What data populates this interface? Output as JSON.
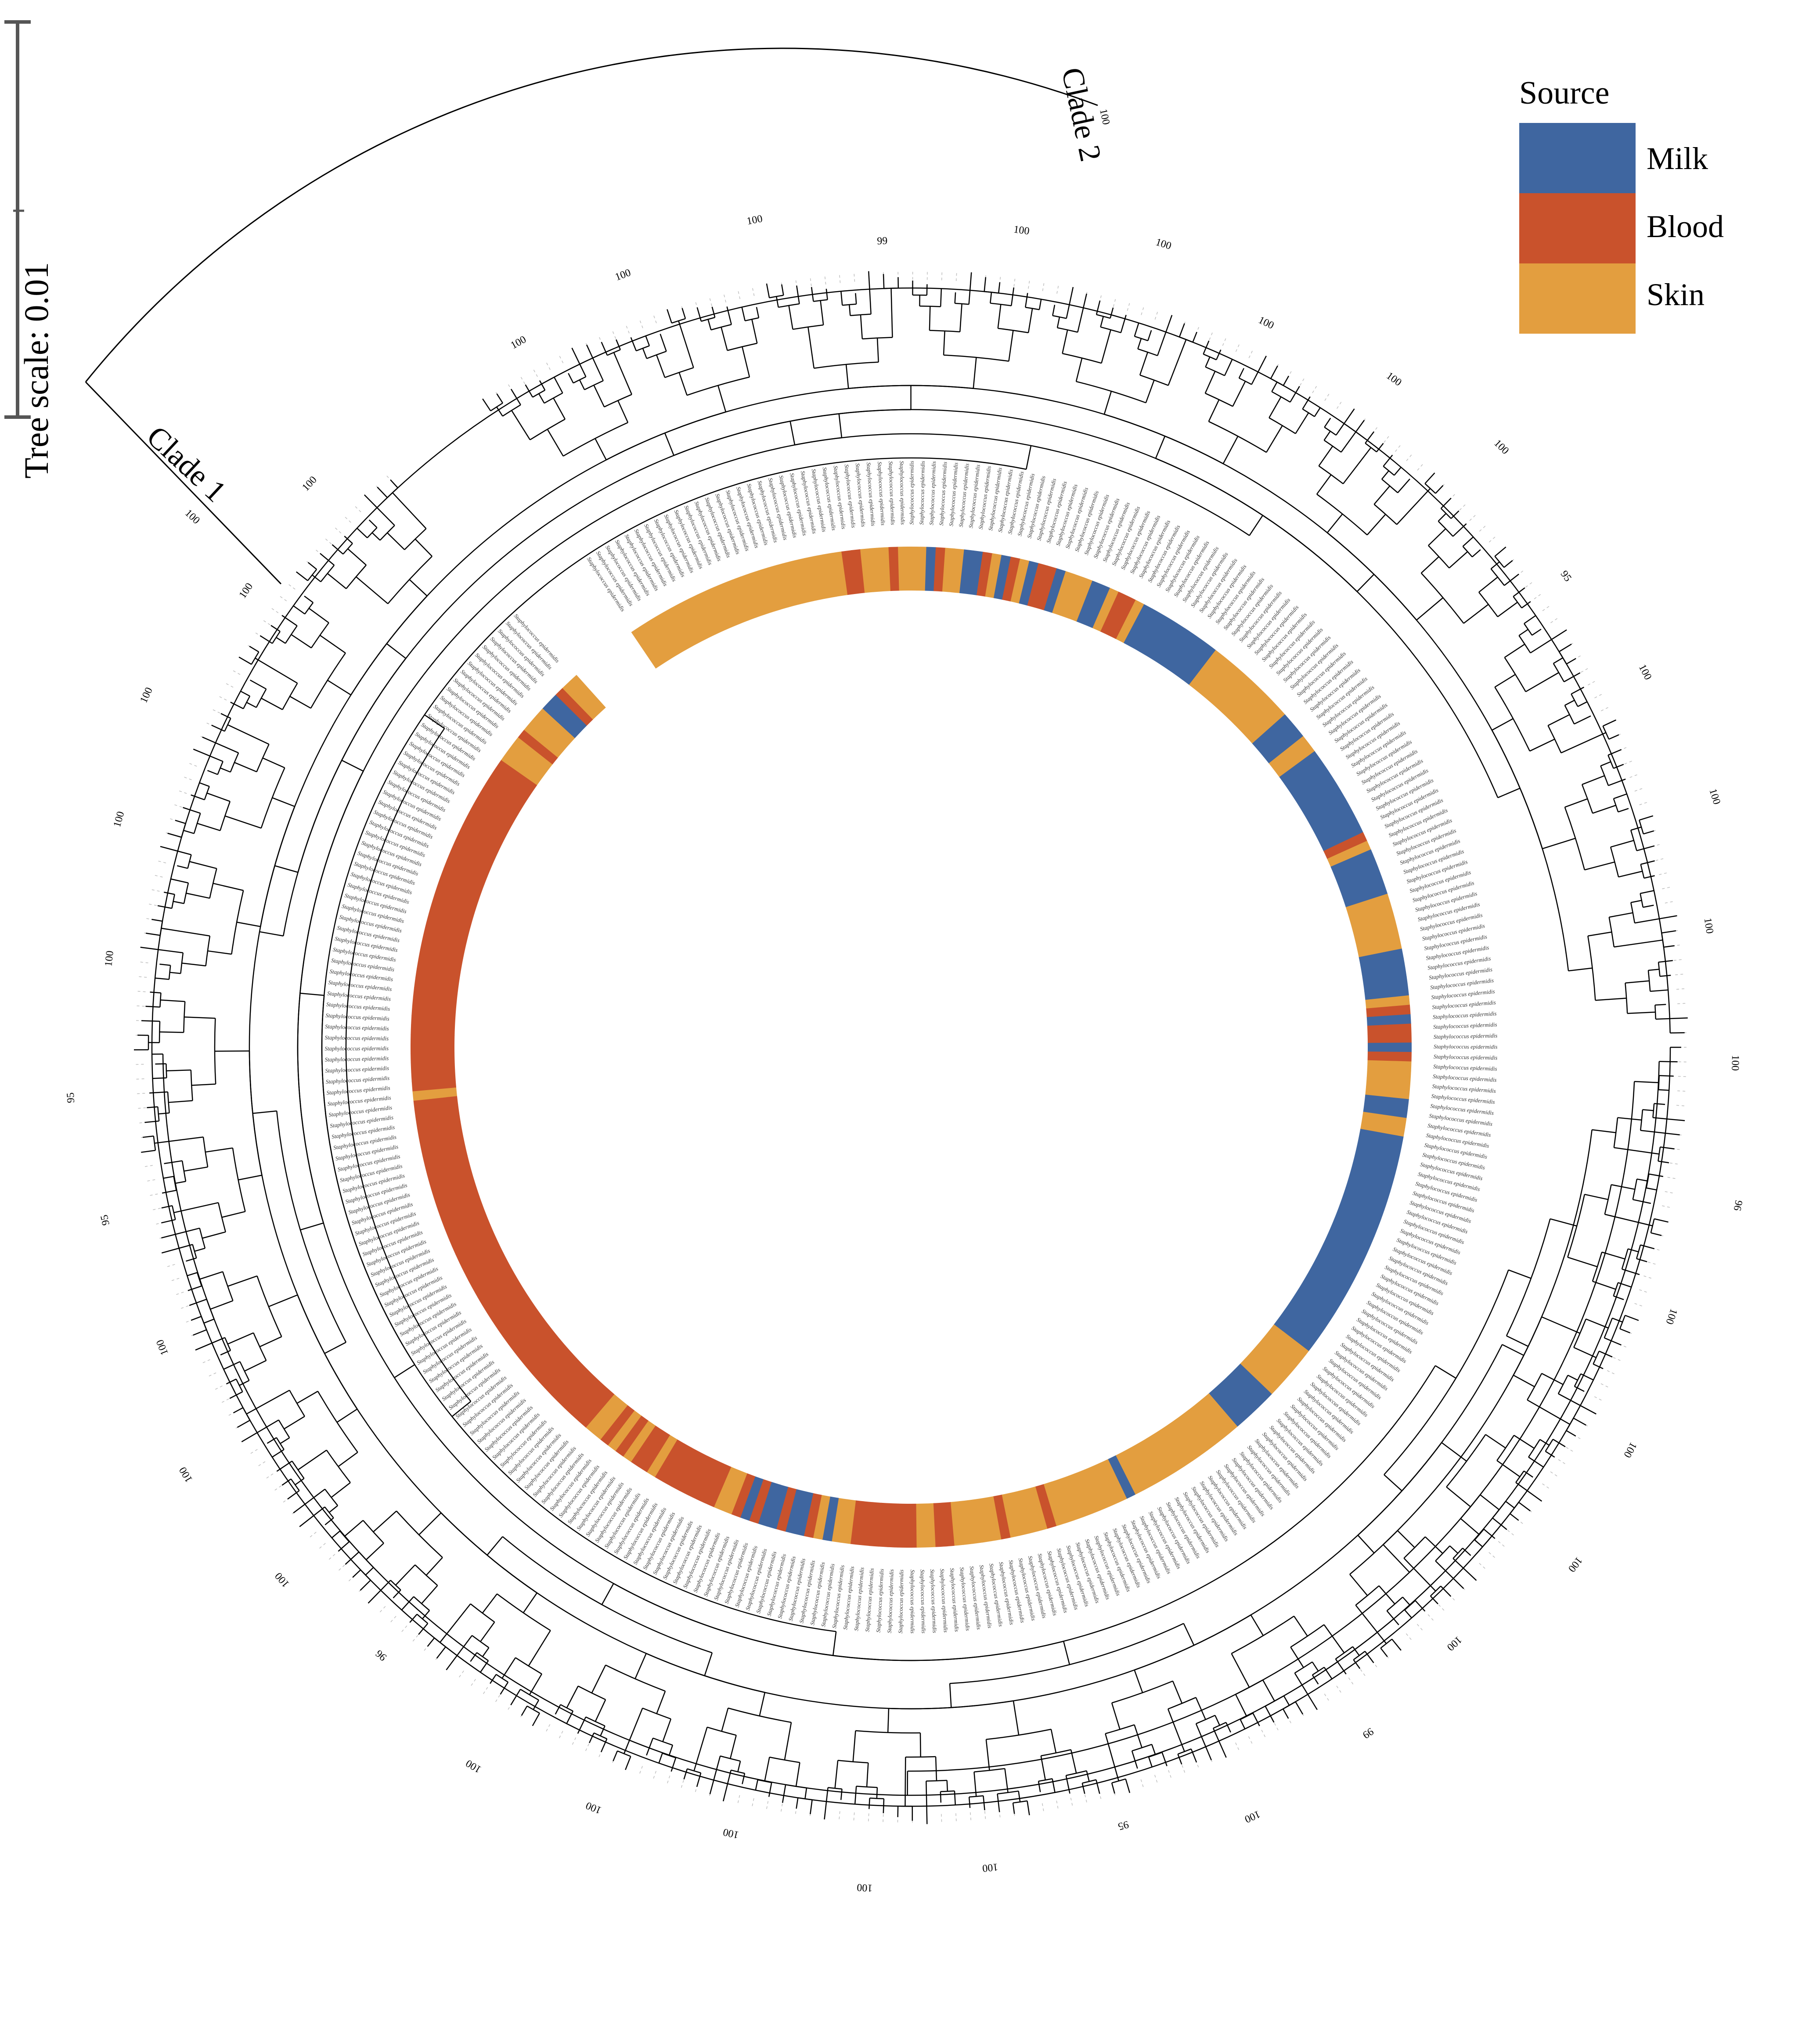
{
  "scale": {
    "label": "Tree scale: 0.01"
  },
  "legend": {
    "title": "Source",
    "items": [
      {
        "label": "Milk",
        "color": "#3f66a0"
      },
      {
        "label": "Blood",
        "color": "#c9522c"
      },
      {
        "label": "Skin",
        "color": "#e39e3f"
      }
    ]
  },
  "clades": [
    {
      "label": "Clade 1",
      "support": "100"
    },
    {
      "label": "Clade 2",
      "support": "100"
    }
  ],
  "colors": {
    "branch": "#000000",
    "guide": "#bdbdbd",
    "tip_text": "#333333"
  },
  "leaf_label_prefix": "Staphylococcus epidermidis",
  "source_ring_sequence": "SSSSSSSSSSSSSSSSSSSSSSSSBBSSSBSSSMBSSMMBSMBSMBBMSSSMMSBBSMMMMMMMMMSSSSSSSSSSMMMSSMMMMMMMMMMBSMMMMMSSSSSSMMMMMSBMBBMBSSSSMMSSMMMMMMMMMMMMMMMMMMMMMMMMMSSSSSSMMMMMSSSSSSSSSSSSSMSSSSSSSSBSSSSBSSSSSBBSSBBBBBBBSSMSBMMBMMBMBSSBBBBBBBSBBSBSBSSBBBBBBBBBBBBBBBBBBBBBBBBBBBBBBBBBBBBBBBBSBBBBBBBBBBBBBBBBBBBBBBBBBBBBBBBBBBBBBSSSBSSSMMBSS",
  "ring_gap_degrees": [
    228,
    236
  ],
  "support_values": [
    "100",
    "100",
    "100",
    "99",
    "100",
    "100",
    "100",
    "100",
    "100",
    "95",
    "100",
    "100",
    "100",
    "100",
    "96",
    "100",
    "100",
    "100",
    "100",
    "99",
    "100",
    "95",
    "100",
    "100",
    "100",
    "100",
    "100",
    "96",
    "100",
    "100",
    "100",
    "95",
    "95",
    "100",
    "100",
    "100",
    "100",
    "100"
  ]
}
